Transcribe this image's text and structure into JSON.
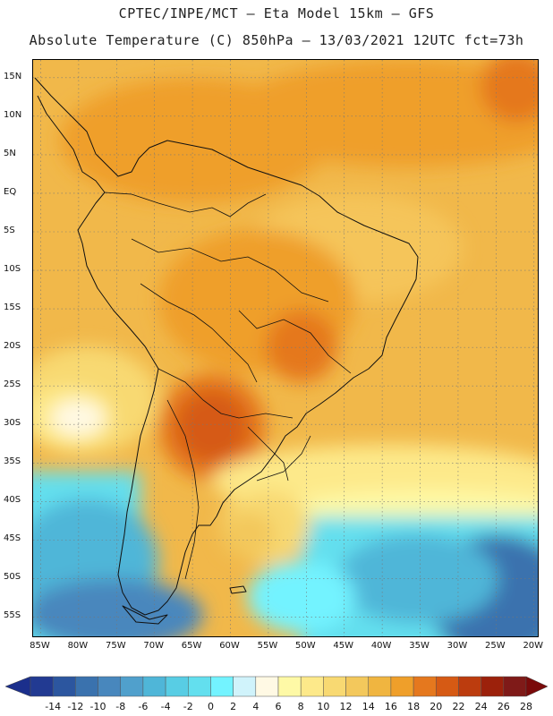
{
  "header": {
    "line1": "CPTEC/INPE/MCT –  Eta Model 15km – GFS",
    "line2": "Absolute Temperature (C) 850hPa – 13/03/2021 12UTC fct=73h"
  },
  "map": {
    "lon_range": [
      -86,
      -19.5
    ],
    "lat_range": [
      -57.5,
      17.3
    ],
    "lat_ticks": [
      {
        "value": 15,
        "label": "15N"
      },
      {
        "value": 10,
        "label": "10N"
      },
      {
        "value": 5,
        "label": "5N"
      },
      {
        "value": 0,
        "label": "EQ"
      },
      {
        "value": -5,
        "label": "5S"
      },
      {
        "value": -10,
        "label": "10S"
      },
      {
        "value": -15,
        "label": "15S"
      },
      {
        "value": -20,
        "label": "20S"
      },
      {
        "value": -25,
        "label": "25S"
      },
      {
        "value": -30,
        "label": "30S"
      },
      {
        "value": -35,
        "label": "35S"
      },
      {
        "value": -40,
        "label": "40S"
      },
      {
        "value": -45,
        "label": "45S"
      },
      {
        "value": -50,
        "label": "50S"
      },
      {
        "value": -55,
        "label": "55S"
      }
    ],
    "lon_ticks": [
      {
        "value": -85,
        "label": "85W"
      },
      {
        "value": -80,
        "label": "80W"
      },
      {
        "value": -75,
        "label": "75W"
      },
      {
        "value": -70,
        "label": "70W"
      },
      {
        "value": -65,
        "label": "65W"
      },
      {
        "value": -60,
        "label": "60W"
      },
      {
        "value": -55,
        "label": "55W"
      },
      {
        "value": -50,
        "label": "50W"
      },
      {
        "value": -45,
        "label": "45W"
      },
      {
        "value": -40,
        "label": "40W"
      },
      {
        "value": -35,
        "label": "35W"
      },
      {
        "value": -30,
        "label": "30W"
      },
      {
        "value": -25,
        "label": "25W"
      },
      {
        "value": -20,
        "label": "20W"
      }
    ],
    "gridlines": "dotted",
    "projection": "cylindrical equidistant"
  },
  "colorbar": {
    "labels": [
      "-14",
      "-12",
      "-10",
      "-8",
      "-6",
      "-4",
      "-2",
      "0",
      "2",
      "4",
      "6",
      "8",
      "10",
      "12",
      "14",
      "16",
      "18",
      "20",
      "22",
      "24",
      "26",
      "28"
    ],
    "low_color": "#1b2f8c",
    "high_color": "#7a0a0a",
    "colors": [
      "#223a92",
      "#2c569f",
      "#3a72ae",
      "#4887bd",
      "#50a0cc",
      "#4fb6d8",
      "#58cde4",
      "#63dfee",
      "#73f3ff",
      "#d0f3fb",
      "#fff9e4",
      "#fef9a6",
      "#fde98a",
      "#f8d972",
      "#f3c85c",
      "#f0b540",
      "#ef9f2a",
      "#e5781e",
      "#d65a14",
      "#bc3c0e",
      "#9c210b",
      "#7f1a18"
    ]
  }
}
